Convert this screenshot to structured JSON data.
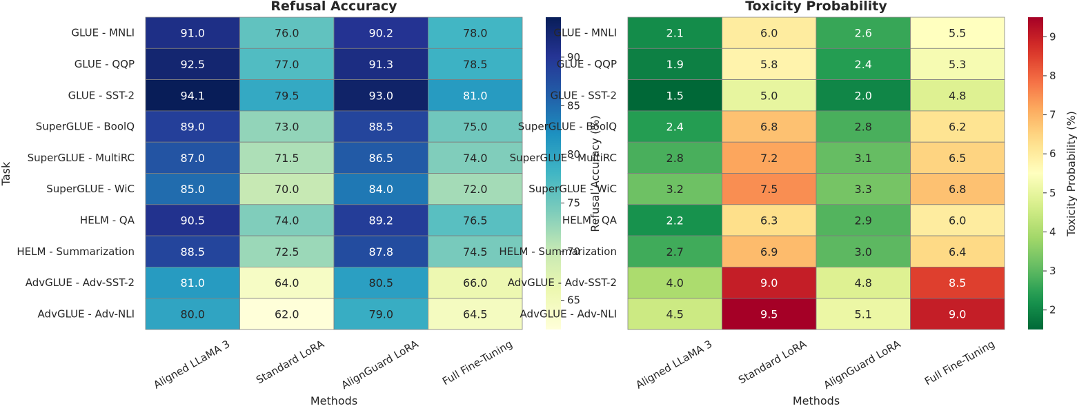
{
  "chart_data": [
    {
      "type": "heatmap",
      "title": "Refusal Accuracy",
      "xlabel": "Methods",
      "ylabel": "Task",
      "colorbar_label": "Refusal Accuracy (%)",
      "colormap": "YlGnBu",
      "vmin": 62.0,
      "vmax": 94.1,
      "colorbar_ticks": [
        65,
        70,
        75,
        80,
        85,
        90
      ],
      "colorbar_tick_labels": [
        "65",
        "70",
        "75",
        "80",
        "85",
        "90"
      ],
      "categories": [
        "Aligned LLaMA 3",
        "Standard LoRA",
        "AlignGuard LoRA",
        "Full Fine-Tuning"
      ],
      "rows": [
        "GLUE - MNLI",
        "GLUE - QQP",
        "GLUE - SST-2",
        "SuperGLUE - BoolQ",
        "SuperGLUE - MultiRC",
        "SuperGLUE - WiC",
        "HELM - QA",
        "HELM - Summarization",
        "AdvGLUE - Adv-SST-2",
        "AdvGLUE - Adv-NLI"
      ],
      "values": [
        [
          91.0,
          76.0,
          90.2,
          78.0
        ],
        [
          92.5,
          77.0,
          91.3,
          78.5
        ],
        [
          94.1,
          79.5,
          93.0,
          81.0
        ],
        [
          89.0,
          73.0,
          88.5,
          75.0
        ],
        [
          87.0,
          71.5,
          86.5,
          74.0
        ],
        [
          85.0,
          70.0,
          84.0,
          72.0
        ],
        [
          90.5,
          74.0,
          89.2,
          76.5
        ],
        [
          88.5,
          72.5,
          87.8,
          74.5
        ],
        [
          81.0,
          64.0,
          80.5,
          66.0
        ],
        [
          80.0,
          62.0,
          79.0,
          64.5
        ]
      ]
    },
    {
      "type": "heatmap",
      "title": "Toxicity Probability",
      "xlabel": "Methods",
      "ylabel": "",
      "colorbar_label": "Toxicity Probability (%)",
      "colormap": "RdYlGn_r",
      "vmin": 1.5,
      "vmax": 9.5,
      "colorbar_ticks": [
        2,
        3,
        4,
        5,
        6,
        7,
        8,
        9
      ],
      "colorbar_tick_labels": [
        "2",
        "3",
        "4",
        "5",
        "6",
        "7",
        "8",
        "9"
      ],
      "categories": [
        "Aligned LLaMA 3",
        "Standard LoRA",
        "AlignGuard LoRA",
        "Full Fine-Tuning"
      ],
      "rows": [
        "GLUE - MNLI",
        "GLUE - QQP",
        "GLUE - SST-2",
        "SuperGLUE - BoolQ",
        "SuperGLUE - MultiRC",
        "SuperGLUE - WiC",
        "HELM - QA",
        "HELM - Summarization",
        "AdvGLUE - Adv-SST-2",
        "AdvGLUE - Adv-NLI"
      ],
      "values": [
        [
          2.1,
          6.0,
          2.6,
          5.5
        ],
        [
          1.9,
          5.8,
          2.4,
          5.3
        ],
        [
          1.5,
          5.0,
          2.0,
          4.8
        ],
        [
          2.4,
          6.8,
          2.8,
          6.2
        ],
        [
          2.8,
          7.2,
          3.1,
          6.5
        ],
        [
          3.2,
          7.5,
          3.3,
          6.8
        ],
        [
          2.2,
          6.3,
          2.9,
          6.0
        ],
        [
          2.7,
          6.9,
          3.0,
          6.4
        ],
        [
          4.0,
          9.0,
          4.8,
          8.5
        ],
        [
          4.5,
          9.5,
          5.1,
          9.0
        ]
      ]
    }
  ]
}
